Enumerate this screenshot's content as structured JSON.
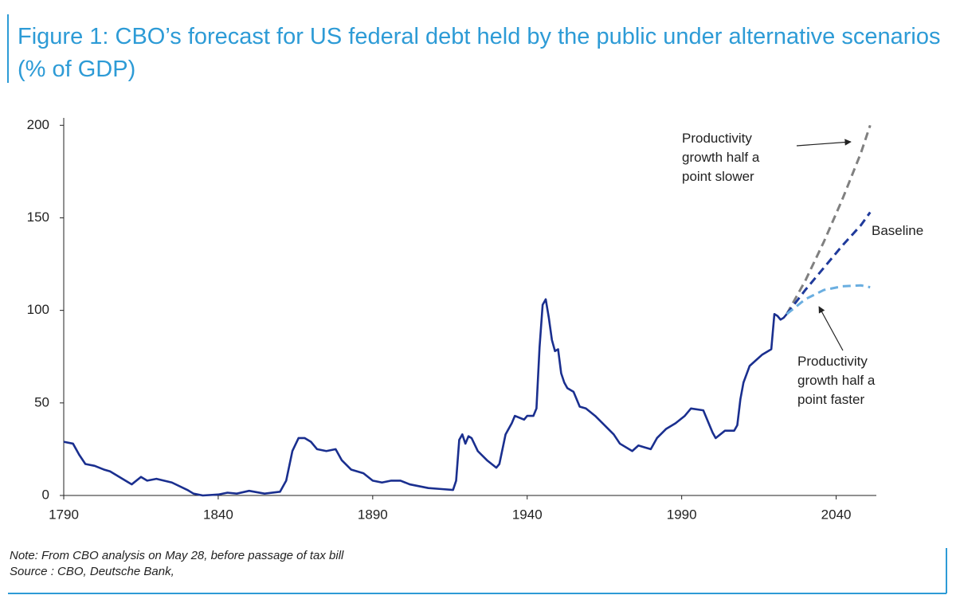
{
  "chart_data": {
    "type": "line",
    "title": "Figure 1: CBO’s forecast for US federal debt held by the public under alternative scenarios (% of GDP)",
    "note": "Note: From CBO analysis on May 28, before passage of tax bill",
    "source": "Source : CBO, Deutsche Bank,",
    "xlim": [
      1790,
      2053
    ],
    "xticks": [
      1790,
      1840,
      1890,
      1940,
      1990,
      2040
    ],
    "ylim": [
      0,
      204
    ],
    "yticks": [
      0,
      50,
      100,
      150,
      200
    ],
    "series": [
      {
        "color": "#1a2f8f",
        "dashed": false,
        "x": [
          1790,
          1793,
          1795,
          1797,
          1800,
          1803,
          1805,
          1808,
          1811,
          1812,
          1815,
          1817,
          1820,
          1825,
          1830,
          1832,
          1835,
          1840,
          1843,
          1846,
          1850,
          1855,
          1860,
          1862,
          1864,
          1866,
          1868,
          1870,
          1872,
          1875,
          1878,
          1880,
          1883,
          1887,
          1890,
          1893,
          1896,
          1899,
          1902,
          1908,
          1912,
          1916,
          1917,
          1918,
          1919,
          1920,
          1921,
          1922,
          1924,
          1927,
          1930,
          1931,
          1933,
          1935,
          1936,
          1939,
          1940,
          1942,
          1943,
          1944,
          1945,
          1946,
          1947,
          1948,
          1949,
          1950,
          1951,
          1952,
          1953,
          1955,
          1957,
          1959,
          1962,
          1965,
          1968,
          1970,
          1974,
          1976,
          1978,
          1980,
          1982,
          1985,
          1988,
          1991,
          1993,
          1997,
          2000,
          2001,
          2004,
          2007,
          2008,
          2009,
          2010,
          2012,
          2014,
          2016,
          2018,
          2019,
          2020,
          2021,
          2022,
          2023,
          2024
        ],
        "values": [
          29,
          28,
          22,
          17,
          16,
          14,
          13,
          10,
          7,
          6,
          10,
          8,
          9,
          7,
          3,
          1,
          0,
          0.5,
          1.5,
          1,
          2.5,
          1,
          2,
          8,
          24,
          31,
          31,
          29,
          25,
          24,
          25,
          19,
          14,
          12,
          8,
          7,
          8,
          8,
          6,
          4,
          3.5,
          3,
          8,
          30,
          33,
          28,
          32,
          31,
          24,
          19,
          15,
          17,
          33,
          39,
          43,
          41,
          43,
          43,
          47,
          80,
          103,
          106,
          96,
          84,
          78,
          79,
          66,
          61,
          58,
          56,
          48,
          47,
          43,
          38,
          33,
          28,
          24,
          27,
          26,
          25,
          31,
          36,
          39,
          43,
          47,
          46,
          34,
          31,
          35,
          35,
          38,
          52,
          61,
          70,
          73,
          76,
          78,
          79,
          98,
          97,
          95,
          96,
          98
        ]
      },
      {
        "name": "Productivity growth half a point slower",
        "color": "#808080",
        "dashed": true,
        "x": [
          2024,
          2030,
          2036,
          2042,
          2048,
          2051
        ],
        "values": [
          98,
          116,
          137,
          160,
          185,
          200
        ]
      },
      {
        "name": "Baseline",
        "color": "#1f3a9b",
        "dashed": true,
        "x": [
          2024,
          2030,
          2036,
          2042,
          2048,
          2051
        ],
        "values": [
          98,
          111,
          123,
          135,
          146,
          153
        ]
      },
      {
        "name": "Productivity growth half a point faster",
        "color": "#6aaee0",
        "dashed": true,
        "x": [
          2024,
          2030,
          2036,
          2042,
          2048,
          2051
        ],
        "values": [
          98,
          106,
          111,
          113,
          113.5,
          112.5
        ]
      }
    ]
  }
}
